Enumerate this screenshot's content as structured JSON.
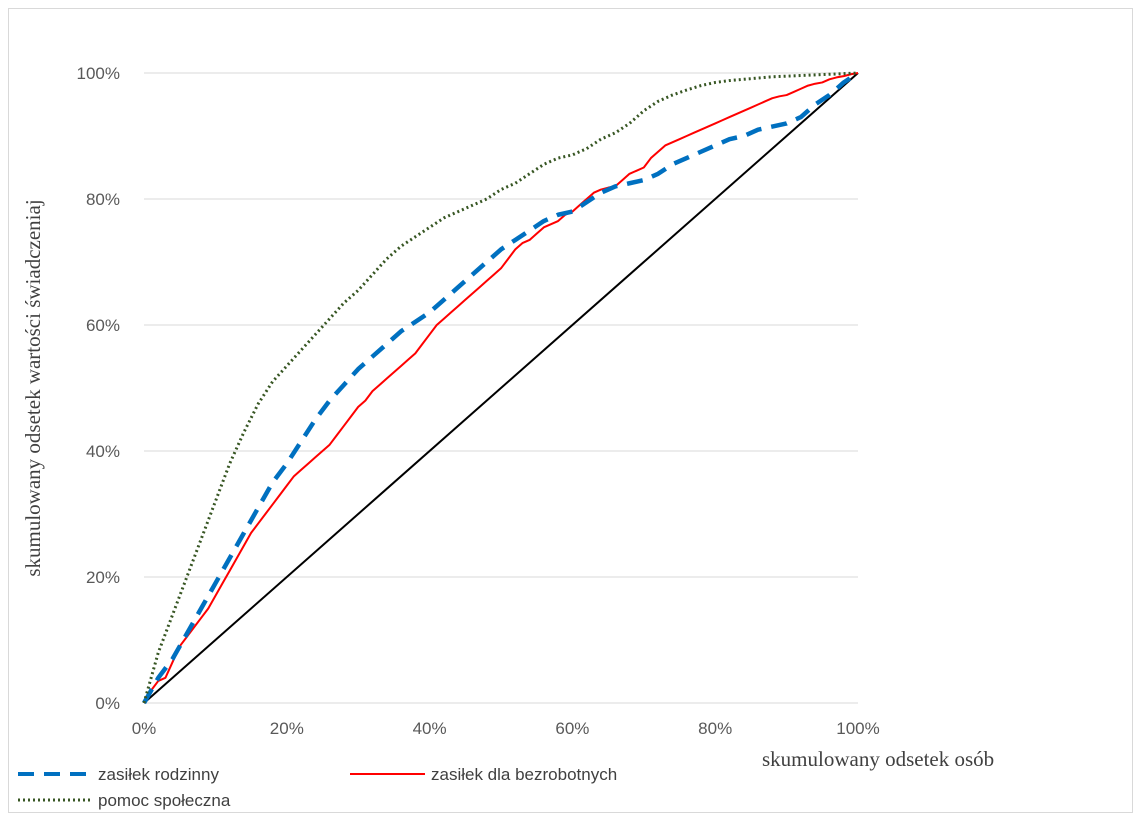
{
  "chart_data": {
    "type": "line",
    "xlabel": "skumulowany odsetek osób",
    "ylabel": "skumulowany odsetek wartości świadczeniaj",
    "xlim": [
      0,
      100
    ],
    "ylim": [
      0,
      100
    ],
    "x_ticks": [
      "0%",
      "20%",
      "40%",
      "60%",
      "80%",
      "100%"
    ],
    "y_ticks": [
      "0%",
      "20%",
      "40%",
      "60%",
      "80%",
      "100%"
    ],
    "grid": "horizontal",
    "legend_position": "bottom-left",
    "series": [
      {
        "name": "zasiłek rodzinny",
        "color": "#0070c0",
        "style": "dashed",
        "x": [
          0,
          2,
          4,
          6,
          8,
          10,
          12,
          14,
          16,
          18,
          20,
          22,
          24,
          26,
          28,
          30,
          32,
          34,
          36,
          38,
          40,
          42,
          44,
          46,
          48,
          50,
          52,
          54,
          56,
          58,
          60,
          62,
          64,
          66,
          68,
          70,
          72,
          74,
          76,
          78,
          80,
          82,
          84,
          86,
          88,
          90,
          92,
          94,
          96,
          98,
          100
        ],
        "y": [
          0,
          4,
          7,
          11,
          15,
          19,
          23,
          27,
          31,
          35,
          38,
          41.5,
          45,
          48,
          50.5,
          53,
          55,
          57,
          59,
          60.5,
          62,
          64,
          66,
          68,
          70,
          72,
          73.5,
          75,
          76.5,
          77.5,
          78,
          79.5,
          81,
          82,
          82.5,
          83,
          84,
          85.5,
          86.5,
          87.5,
          88.5,
          89.5,
          90,
          91,
          91.5,
          92,
          93,
          95,
          96.5,
          98.5,
          100
        ]
      },
      {
        "name": "zasiłek dla bezrobotnych",
        "color": "#ff0000",
        "style": "solid",
        "x": [
          0,
          1,
          2,
          3,
          4,
          5,
          6,
          7,
          8,
          9,
          10,
          11,
          12,
          13,
          14,
          15,
          16,
          17,
          18,
          19,
          20,
          21,
          22,
          23,
          24,
          25,
          26,
          27,
          28,
          29,
          30,
          31,
          32,
          33,
          34,
          35,
          36,
          37,
          38,
          39,
          40,
          41,
          42,
          43,
          44,
          45,
          46,
          47,
          48,
          49,
          50,
          51,
          52,
          53,
          54,
          55,
          56,
          57,
          58,
          59,
          60,
          61,
          62,
          63,
          64,
          65,
          66,
          67,
          68,
          69,
          70,
          71,
          72,
          73,
          74,
          75,
          76,
          77,
          78,
          79,
          80,
          81,
          82,
          83,
          84,
          85,
          86,
          87,
          88,
          89,
          90,
          91,
          92,
          93,
          94,
          95,
          96,
          97,
          98,
          99,
          100
        ],
        "y": [
          0,
          2,
          3.5,
          4,
          6.5,
          9,
          10.5,
          12,
          13.5,
          15,
          17,
          19,
          21,
          23,
          25,
          27,
          28.5,
          30,
          31.5,
          33,
          34.5,
          36,
          37,
          38,
          39,
          40,
          41,
          42.5,
          44,
          45.5,
          47,
          48,
          49.5,
          50.5,
          51.5,
          52.5,
          53.5,
          54.5,
          55.5,
          57,
          58.5,
          60,
          61,
          62,
          63,
          64,
          65,
          66,
          67,
          68,
          69,
          70.5,
          72,
          73,
          73.5,
          74.5,
          75.5,
          76,
          76.5,
          77.5,
          78,
          79,
          80,
          81,
          81.5,
          81.8,
          82,
          83,
          84,
          84.5,
          85,
          86.5,
          87.5,
          88.5,
          89,
          89.5,
          90,
          90.5,
          91,
          91.5,
          92,
          92.5,
          93,
          93.5,
          94,
          94.5,
          95,
          95.5,
          96,
          96.3,
          96.5,
          97,
          97.5,
          98,
          98.3,
          98.5,
          99,
          99.3,
          99.5,
          99.8,
          100
        ]
      },
      {
        "name": "pomoc społeczna",
        "color": "#375623",
        "style": "dotted",
        "x": [
          0,
          2,
          4,
          6,
          8,
          10,
          12,
          14,
          16,
          18,
          20,
          22,
          24,
          26,
          28,
          30,
          32,
          34,
          36,
          38,
          40,
          42,
          44,
          46,
          48,
          50,
          52,
          54,
          56,
          58,
          60,
          62,
          64,
          66,
          68,
          70,
          72,
          74,
          76,
          78,
          80,
          82,
          84,
          86,
          88,
          90,
          92,
          94,
          96,
          98,
          100
        ],
        "y": [
          0,
          8,
          14,
          20,
          26,
          32,
          38,
          43,
          47.5,
          51,
          53.5,
          56,
          58.5,
          61,
          63.5,
          65.5,
          68,
          70.5,
          72.5,
          74,
          75.5,
          77,
          78,
          79,
          80,
          81.5,
          82.5,
          84,
          85.5,
          86.5,
          87,
          88,
          89.5,
          90.5,
          92,
          94,
          95.5,
          96.5,
          97.3,
          98,
          98.5,
          98.8,
          99,
          99.2,
          99.4,
          99.5,
          99.6,
          99.7,
          99.8,
          99.9,
          100
        ]
      },
      {
        "name": "",
        "color": "#000000",
        "style": "solid",
        "x": [
          0,
          100
        ],
        "y": [
          0,
          100
        ]
      }
    ]
  }
}
